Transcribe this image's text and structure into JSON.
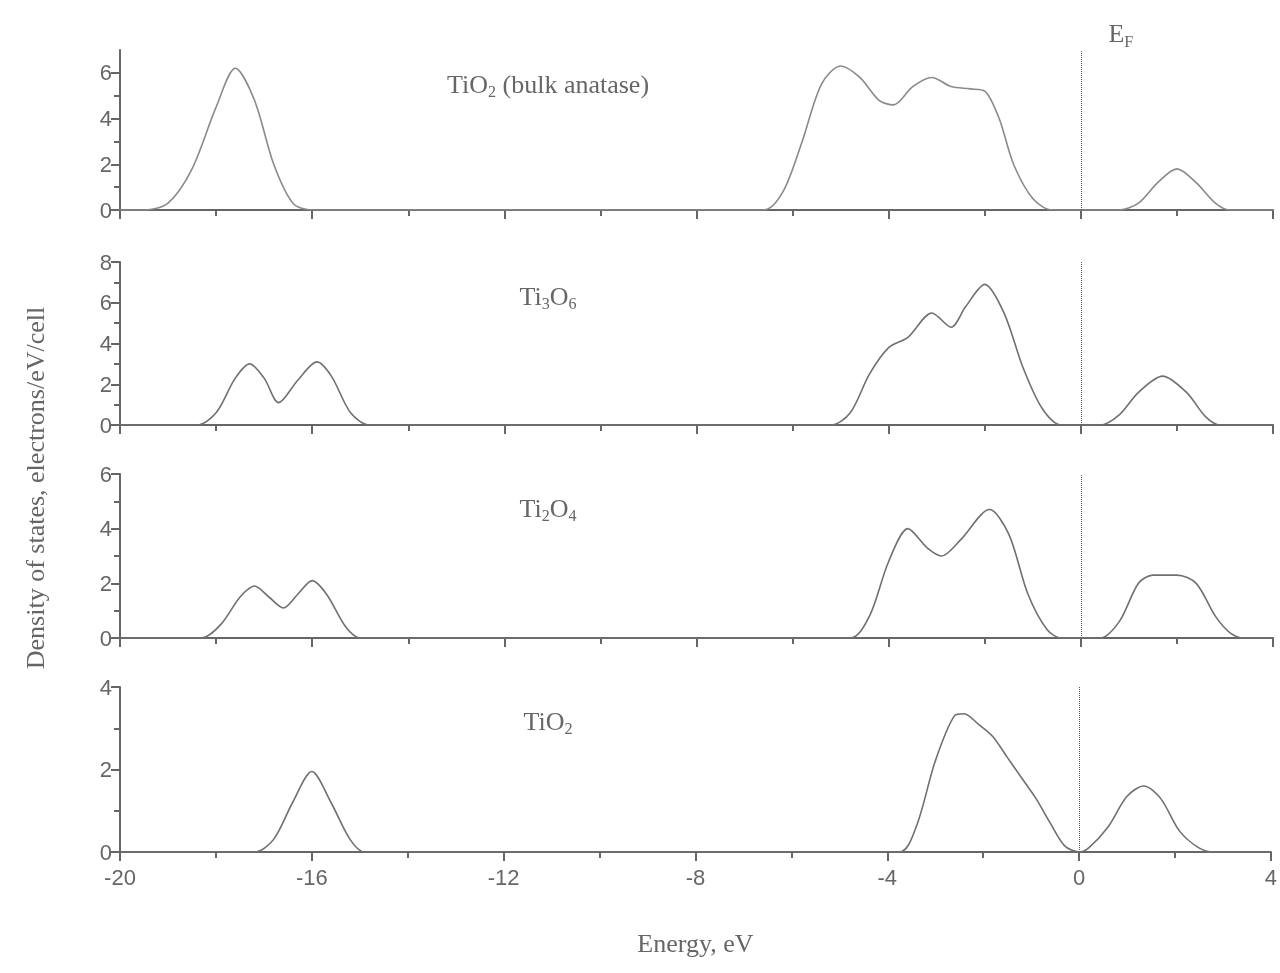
{
  "chart_data": [
    {
      "type": "line",
      "annotations": [
        "TiO$_{2}$ (bulk anatase)"
      ],
      "ylabel": "Density of states, electrons/eV/cell",
      "xlim": [
        -20,
        4
      ],
      "xticks": [
        -20,
        -16,
        -12,
        -8,
        -4,
        0,
        4
      ],
      "ylim": [
        0,
        7
      ],
      "yticks": [
        0,
        2,
        4,
        6
      ],
      "tick_labels": "y",
      "grid": false,
      "marker": "none",
      "ref_lines": [
        {
          "axis": "x",
          "value": 0,
          "label": "E$_{F}$",
          "line_style": "dotted",
          "color": "#555555"
        }
      ],
      "series": [
        {
          "color": "#8a8a8a",
          "x": [
            -20,
            -19.5,
            -19.0,
            -18.5,
            -18.0,
            -17.6,
            -17.2,
            -16.8,
            -16.4,
            -16.0,
            -6.6,
            -6.2,
            -5.8,
            -5.4,
            -5.0,
            -4.6,
            -4.2,
            -3.9,
            -3.5,
            -3.1,
            -2.7,
            -2.3,
            -2.0,
            -1.7,
            -1.4,
            -1.0,
            -0.6,
            0.8,
            1.2,
            1.6,
            2.0,
            2.4,
            2.8,
            3.1,
            4
          ],
          "values": [
            0,
            0,
            0.3,
            1.8,
            4.5,
            6.2,
            4.8,
            2.0,
            0.3,
            0,
            0,
            0.8,
            3.0,
            5.5,
            6.3,
            5.8,
            4.8,
            4.6,
            5.4,
            5.8,
            5.4,
            5.3,
            5.2,
            4.0,
            2.0,
            0.5,
            0,
            0,
            0.3,
            1.2,
            1.8,
            1.2,
            0.3,
            0,
            0
          ]
        }
      ]
    },
    {
      "type": "line",
      "annotations": [
        "Ti$_{3}$O$_{6}$"
      ],
      "xlim": [
        -20,
        4
      ],
      "xticks": [
        -20,
        -16,
        -12,
        -8,
        -4,
        0,
        4
      ],
      "ylim": [
        0,
        8
      ],
      "yticks": [
        0,
        2,
        4,
        6,
        8
      ],
      "tick_labels": "y",
      "grid": false,
      "marker": "none",
      "ref_lines": [
        {
          "axis": "x",
          "value": 0,
          "line_style": "dotted",
          "color": "#555555"
        }
      ],
      "series": [
        {
          "color": "#707070",
          "x": [
            -20,
            -18.4,
            -18.0,
            -17.6,
            -17.3,
            -17.0,
            -16.7,
            -16.3,
            -15.9,
            -15.6,
            -15.2,
            -14.8,
            -5.2,
            -4.8,
            -4.4,
            -4.0,
            -3.6,
            -3.1,
            -2.7,
            -2.4,
            -2.0,
            -1.6,
            -1.2,
            -0.8,
            -0.4,
            0.4,
            0.8,
            1.2,
            1.7,
            2.2,
            2.6,
            2.9,
            4
          ],
          "values": [
            0,
            0,
            0.6,
            2.3,
            3.0,
            2.3,
            1.1,
            2.2,
            3.1,
            2.4,
            0.6,
            0,
            0,
            0.6,
            2.5,
            3.8,
            4.3,
            5.5,
            4.8,
            5.8,
            6.9,
            5.5,
            2.8,
            0.8,
            0,
            0,
            0.5,
            1.6,
            2.4,
            1.6,
            0.4,
            0,
            0
          ]
        }
      ]
    },
    {
      "type": "line",
      "annotations": [
        "Ti$_{2}$O$_{4}$"
      ],
      "xlim": [
        -20,
        4
      ],
      "xticks": [
        -20,
        -16,
        -12,
        -8,
        -4,
        0,
        4
      ],
      "ylim": [
        0,
        6
      ],
      "yticks": [
        0,
        2,
        4,
        6
      ],
      "tick_labels": "y",
      "grid": false,
      "marker": "none",
      "ref_lines": [
        {
          "axis": "x",
          "value": 0,
          "line_style": "dotted",
          "color": "#555555"
        }
      ],
      "series": [
        {
          "color": "#707070",
          "x": [
            -20,
            -18.3,
            -17.9,
            -17.5,
            -17.2,
            -16.9,
            -16.6,
            -16.3,
            -16.0,
            -15.7,
            -15.3,
            -15.0,
            -4.8,
            -4.4,
            -4.0,
            -3.6,
            -3.2,
            -2.9,
            -2.5,
            -1.9,
            -1.5,
            -1.1,
            -0.7,
            -0.4,
            0.4,
            0.8,
            1.2,
            1.5,
            2.0,
            2.4,
            2.8,
            3.1,
            3.4,
            4
          ],
          "values": [
            0,
            0,
            0.5,
            1.5,
            1.9,
            1.5,
            1.1,
            1.6,
            2.1,
            1.6,
            0.4,
            0,
            0,
            0.8,
            2.8,
            4.0,
            3.3,
            3.0,
            3.6,
            4.7,
            3.8,
            1.6,
            0.3,
            0,
            0,
            0.6,
            2.0,
            2.3,
            2.3,
            2.0,
            0.8,
            0.2,
            0,
            0
          ]
        }
      ]
    },
    {
      "type": "line",
      "annotations": [
        "TiO$_{2}$"
      ],
      "xlabel": "Energy, eV",
      "xlim": [
        -20,
        4
      ],
      "xticks": [
        -20,
        -16,
        -12,
        -8,
        -4,
        0,
        4
      ],
      "ylim": [
        0,
        4
      ],
      "yticks": [
        0,
        2,
        4
      ],
      "grid": false,
      "marker": "none",
      "ref_lines": [
        {
          "axis": "x",
          "value": 0,
          "line_style": "dotted",
          "color": "#555555"
        }
      ],
      "series": [
        {
          "color": "#707070",
          "x": [
            -20,
            -17.2,
            -16.8,
            -16.4,
            -16.0,
            -15.6,
            -15.2,
            -14.9,
            -3.75,
            -3.4,
            -3.0,
            -2.6,
            -2.4,
            -2.1,
            -1.8,
            -1.5,
            -1.2,
            -0.9,
            -0.6,
            -0.3,
            0,
            0.2,
            0.6,
            1.0,
            1.35,
            1.7,
            2.1,
            2.5,
            2.8,
            4
          ],
          "values": [
            0,
            0,
            0.3,
            1.2,
            1.95,
            1.2,
            0.3,
            0,
            0,
            0.6,
            2.2,
            3.3,
            3.35,
            3.1,
            2.8,
            2.3,
            1.8,
            1.3,
            0.7,
            0.15,
            0,
            0.1,
            0.6,
            1.35,
            1.6,
            1.3,
            0.5,
            0.1,
            0,
            0
          ]
        }
      ]
    }
  ]
}
